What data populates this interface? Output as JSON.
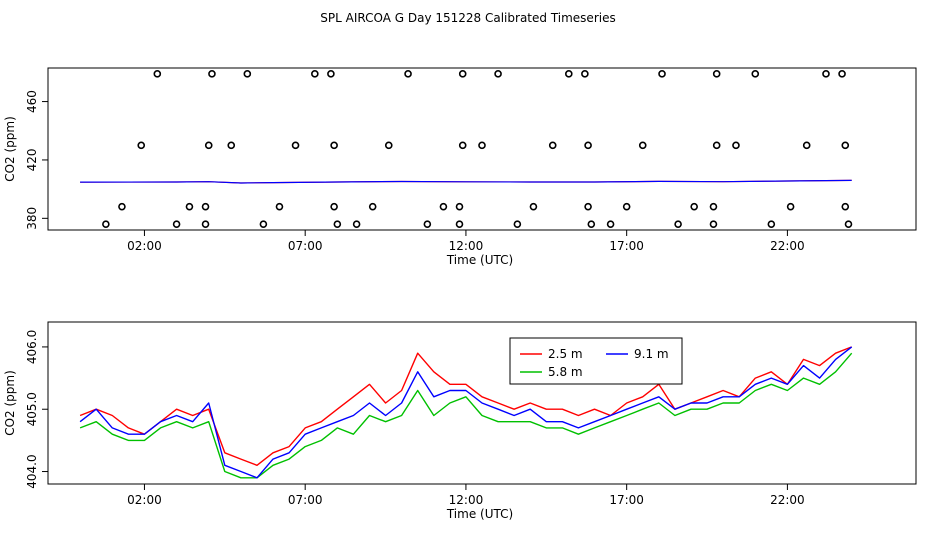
{
  "title": "SPL AIRCOA G  Day 151228  Calibrated Timeseries",
  "chart_data": [
    {
      "type": "scatter",
      "xlabel": "Time (UTC)",
      "ylabel": "CO2 (ppm)",
      "xlim": [
        -1.0,
        26.0
      ],
      "ylim": [
        372,
        483
      ],
      "xticks": [
        2,
        7,
        12,
        17,
        22
      ],
      "xtick_labels": [
        "02:00",
        "07:00",
        "12:00",
        "17:00",
        "22:00"
      ],
      "yticks": [
        380,
        420,
        460
      ],
      "ytick_labels": [
        "380",
        "420",
        "460"
      ],
      "grid": false,
      "series": [
        {
          "marker": "open-circle",
          "color": "#000000",
          "points": [
            [
              0.8,
              376
            ],
            [
              1.3,
              388
            ],
            [
              1.9,
              430
            ],
            [
              2.4,
              479
            ],
            [
              3.0,
              376
            ],
            [
              3.4,
              388
            ],
            [
              3.9,
              376
            ],
            [
              3.9,
              388
            ],
            [
              4.0,
              430
            ],
            [
              4.1,
              479
            ],
            [
              4.7,
              430
            ],
            [
              5.2,
              479
            ],
            [
              5.7,
              376
            ],
            [
              6.2,
              388
            ],
            [
              6.7,
              430
            ],
            [
              7.3,
              479
            ],
            [
              7.8,
              479
            ],
            [
              7.9,
              430
            ],
            [
              7.9,
              388
            ],
            [
              8.0,
              376
            ],
            [
              8.6,
              376
            ],
            [
              9.1,
              388
            ],
            [
              9.6,
              430
            ],
            [
              10.2,
              479
            ],
            [
              10.8,
              376
            ],
            [
              11.3,
              388
            ],
            [
              11.8,
              376
            ],
            [
              11.8,
              388
            ],
            [
              11.9,
              430
            ],
            [
              11.9,
              479
            ],
            [
              12.5,
              430
            ],
            [
              13.0,
              479
            ],
            [
              13.6,
              376
            ],
            [
              14.1,
              388
            ],
            [
              14.7,
              430
            ],
            [
              15.2,
              479
            ],
            [
              15.7,
              479
            ],
            [
              15.8,
              430
            ],
            [
              15.8,
              388
            ],
            [
              15.9,
              376
            ],
            [
              16.5,
              376
            ],
            [
              17.0,
              388
            ],
            [
              17.5,
              430
            ],
            [
              18.1,
              479
            ],
            [
              18.6,
              376
            ],
            [
              19.1,
              388
            ],
            [
              19.7,
              376
            ],
            [
              19.7,
              388
            ],
            [
              19.8,
              430
            ],
            [
              19.8,
              479
            ],
            [
              20.4,
              430
            ],
            [
              21.0,
              479
            ],
            [
              21.5,
              376
            ],
            [
              22.1,
              388
            ],
            [
              22.6,
              430
            ],
            [
              23.2,
              479
            ],
            [
              23.7,
              479
            ],
            [
              23.8,
              430
            ],
            [
              23.8,
              388
            ],
            [
              23.9,
              376
            ]
          ]
        },
        {
          "name": "",
          "color": "#ff0000",
          "points": [
            [
              0,
              404.8
            ],
            [
              3,
              404.9
            ],
            [
              4,
              405.1
            ],
            [
              5,
              404.2
            ],
            [
              6,
              404.5
            ],
            [
              8,
              404.9
            ],
            [
              10,
              405.2
            ],
            [
              12,
              405.0
            ],
            [
              14,
              404.9
            ],
            [
              16,
              404.9
            ],
            [
              18,
              405.3
            ],
            [
              20,
              405.1
            ],
            [
              22,
              405.6
            ],
            [
              24,
              406.0
            ]
          ]
        },
        {
          "name": "",
          "color": "#0000ff",
          "points": [
            [
              0,
              404.8
            ],
            [
              3,
              404.9
            ],
            [
              4,
              405.1
            ],
            [
              5,
              404.2
            ],
            [
              6,
              404.5
            ],
            [
              8,
              404.9
            ],
            [
              10,
              405.2
            ],
            [
              12,
              405.0
            ],
            [
              14,
              404.9
            ],
            [
              16,
              404.9
            ],
            [
              18,
              405.3
            ],
            [
              20,
              405.1
            ],
            [
              22,
              405.6
            ],
            [
              24,
              406.0
            ]
          ]
        }
      ]
    },
    {
      "type": "line",
      "xlabel": "Time (UTC)",
      "ylabel": "CO2 (ppm)",
      "xlim": [
        -1.0,
        26.0
      ],
      "ylim": [
        403.8,
        406.4
      ],
      "xticks": [
        2,
        7,
        12,
        17,
        22
      ],
      "xtick_labels": [
        "02:00",
        "07:00",
        "12:00",
        "17:00",
        "22:00"
      ],
      "yticks": [
        404.0,
        405.0,
        406.0
      ],
      "ytick_labels": [
        "404.0",
        "405.0",
        "406.0"
      ],
      "grid": false,
      "legend": "top-center",
      "series": [
        {
          "name": "2.5 m",
          "color": "#ff0000",
          "x": [
            0.0,
            0.5,
            1.0,
            1.5,
            2.0,
            2.5,
            3.0,
            3.5,
            4.0,
            4.5,
            5.0,
            5.5,
            6.0,
            6.5,
            7.0,
            7.5,
            8.0,
            8.5,
            9.0,
            9.5,
            10.0,
            10.5,
            11.0,
            11.5,
            12.0,
            12.5,
            13.0,
            13.5,
            14.0,
            14.5,
            15.0,
            15.5,
            16.0,
            16.5,
            17.0,
            17.5,
            18.0,
            18.5,
            19.0,
            19.5,
            20.0,
            20.5,
            21.0,
            21.5,
            22.0,
            22.5,
            23.0,
            23.5,
            24.0
          ],
          "values": [
            404.9,
            405.0,
            404.9,
            404.7,
            404.6,
            404.8,
            405.0,
            404.9,
            405.0,
            404.3,
            404.2,
            404.1,
            404.3,
            404.4,
            404.7,
            404.8,
            405.0,
            405.2,
            405.4,
            405.1,
            405.3,
            405.9,
            405.6,
            405.4,
            405.4,
            405.2,
            405.1,
            405.0,
            405.1,
            405.0,
            405.0,
            404.9,
            405.0,
            404.9,
            405.1,
            405.2,
            405.4,
            405.0,
            405.1,
            405.2,
            405.3,
            405.2,
            405.5,
            405.6,
            405.4,
            405.8,
            405.7,
            405.9,
            406.0
          ]
        },
        {
          "name": "5.8 m",
          "color": "#00c000",
          "x": [
            0.0,
            0.5,
            1.0,
            1.5,
            2.0,
            2.5,
            3.0,
            3.5,
            4.0,
            4.5,
            5.0,
            5.5,
            6.0,
            6.5,
            7.0,
            7.5,
            8.0,
            8.5,
            9.0,
            9.5,
            10.0,
            10.5,
            11.0,
            11.5,
            12.0,
            12.5,
            13.0,
            13.5,
            14.0,
            14.5,
            15.0,
            15.5,
            16.0,
            16.5,
            17.0,
            17.5,
            18.0,
            18.5,
            19.0,
            19.5,
            20.0,
            20.5,
            21.0,
            21.5,
            22.0,
            22.5,
            23.0,
            23.5,
            24.0
          ],
          "values": [
            404.7,
            404.8,
            404.6,
            404.5,
            404.5,
            404.7,
            404.8,
            404.7,
            404.8,
            404.0,
            403.9,
            403.9,
            404.1,
            404.2,
            404.4,
            404.5,
            404.7,
            404.6,
            404.9,
            404.8,
            404.9,
            405.3,
            404.9,
            405.1,
            405.2,
            404.9,
            404.8,
            404.8,
            404.8,
            404.7,
            404.7,
            404.6,
            404.7,
            404.8,
            404.9,
            405.0,
            405.1,
            404.9,
            405.0,
            405.0,
            405.1,
            405.1,
            405.3,
            405.4,
            405.3,
            405.5,
            405.4,
            405.6,
            405.9
          ]
        },
        {
          "name": "9.1 m",
          "color": "#0000ff",
          "x": [
            0.0,
            0.5,
            1.0,
            1.5,
            2.0,
            2.5,
            3.0,
            3.5,
            4.0,
            4.5,
            5.0,
            5.5,
            6.0,
            6.5,
            7.0,
            7.5,
            8.0,
            8.5,
            9.0,
            9.5,
            10.0,
            10.5,
            11.0,
            11.5,
            12.0,
            12.5,
            13.0,
            13.5,
            14.0,
            14.5,
            15.0,
            15.5,
            16.0,
            16.5,
            17.0,
            17.5,
            18.0,
            18.5,
            19.0,
            19.5,
            20.0,
            20.5,
            21.0,
            21.5,
            22.0,
            22.5,
            23.0,
            23.5,
            24.0
          ],
          "values": [
            404.8,
            405.0,
            404.7,
            404.6,
            404.6,
            404.8,
            404.9,
            404.8,
            405.1,
            404.1,
            404.0,
            403.9,
            404.2,
            404.3,
            404.6,
            404.7,
            404.8,
            404.9,
            405.1,
            404.9,
            405.1,
            405.6,
            405.2,
            405.3,
            405.3,
            405.1,
            405.0,
            404.9,
            405.0,
            404.8,
            404.8,
            404.7,
            404.8,
            404.9,
            405.0,
            405.1,
            405.2,
            405.0,
            405.1,
            405.1,
            405.2,
            405.2,
            405.4,
            405.5,
            405.4,
            405.7,
            405.5,
            405.8,
            406.0
          ]
        }
      ]
    }
  ]
}
